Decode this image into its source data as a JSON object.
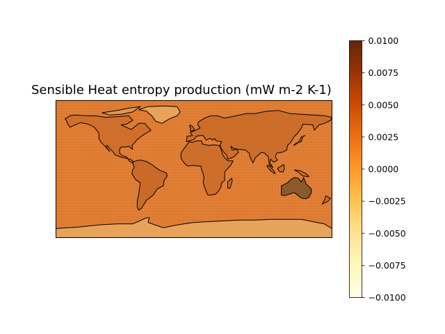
{
  "chart_data": {
    "type": "heatmap",
    "title": "Sensible Heat entropy production (mW m-2 K-1)",
    "map": {
      "projection": "plate-carree",
      "coastlines": true,
      "lon_range": [
        -180,
        180
      ],
      "lat_range": [
        -90,
        90
      ]
    },
    "colormap": "YlOrBr",
    "colors": [
      "#ffffe5",
      "#fff7bc",
      "#fee391",
      "#fec44f",
      "#fe9929",
      "#ec7014",
      "#cc4c02",
      "#993404",
      "#662506"
    ],
    "colorbar": {
      "vmin": -0.01,
      "vmax": 0.01,
      "ticks": [
        0.01,
        0.0075,
        0.005,
        0.0025,
        0.0,
        -0.0025,
        -0.005,
        -0.0075,
        -0.01
      ],
      "tick_labels": [
        "0.0100",
        "0.0075",
        "0.0050",
        "0.0025",
        "0.0000",
        "−0.0025",
        "−0.0050",
        "−0.0075",
        "−0.0100"
      ]
    }
  }
}
